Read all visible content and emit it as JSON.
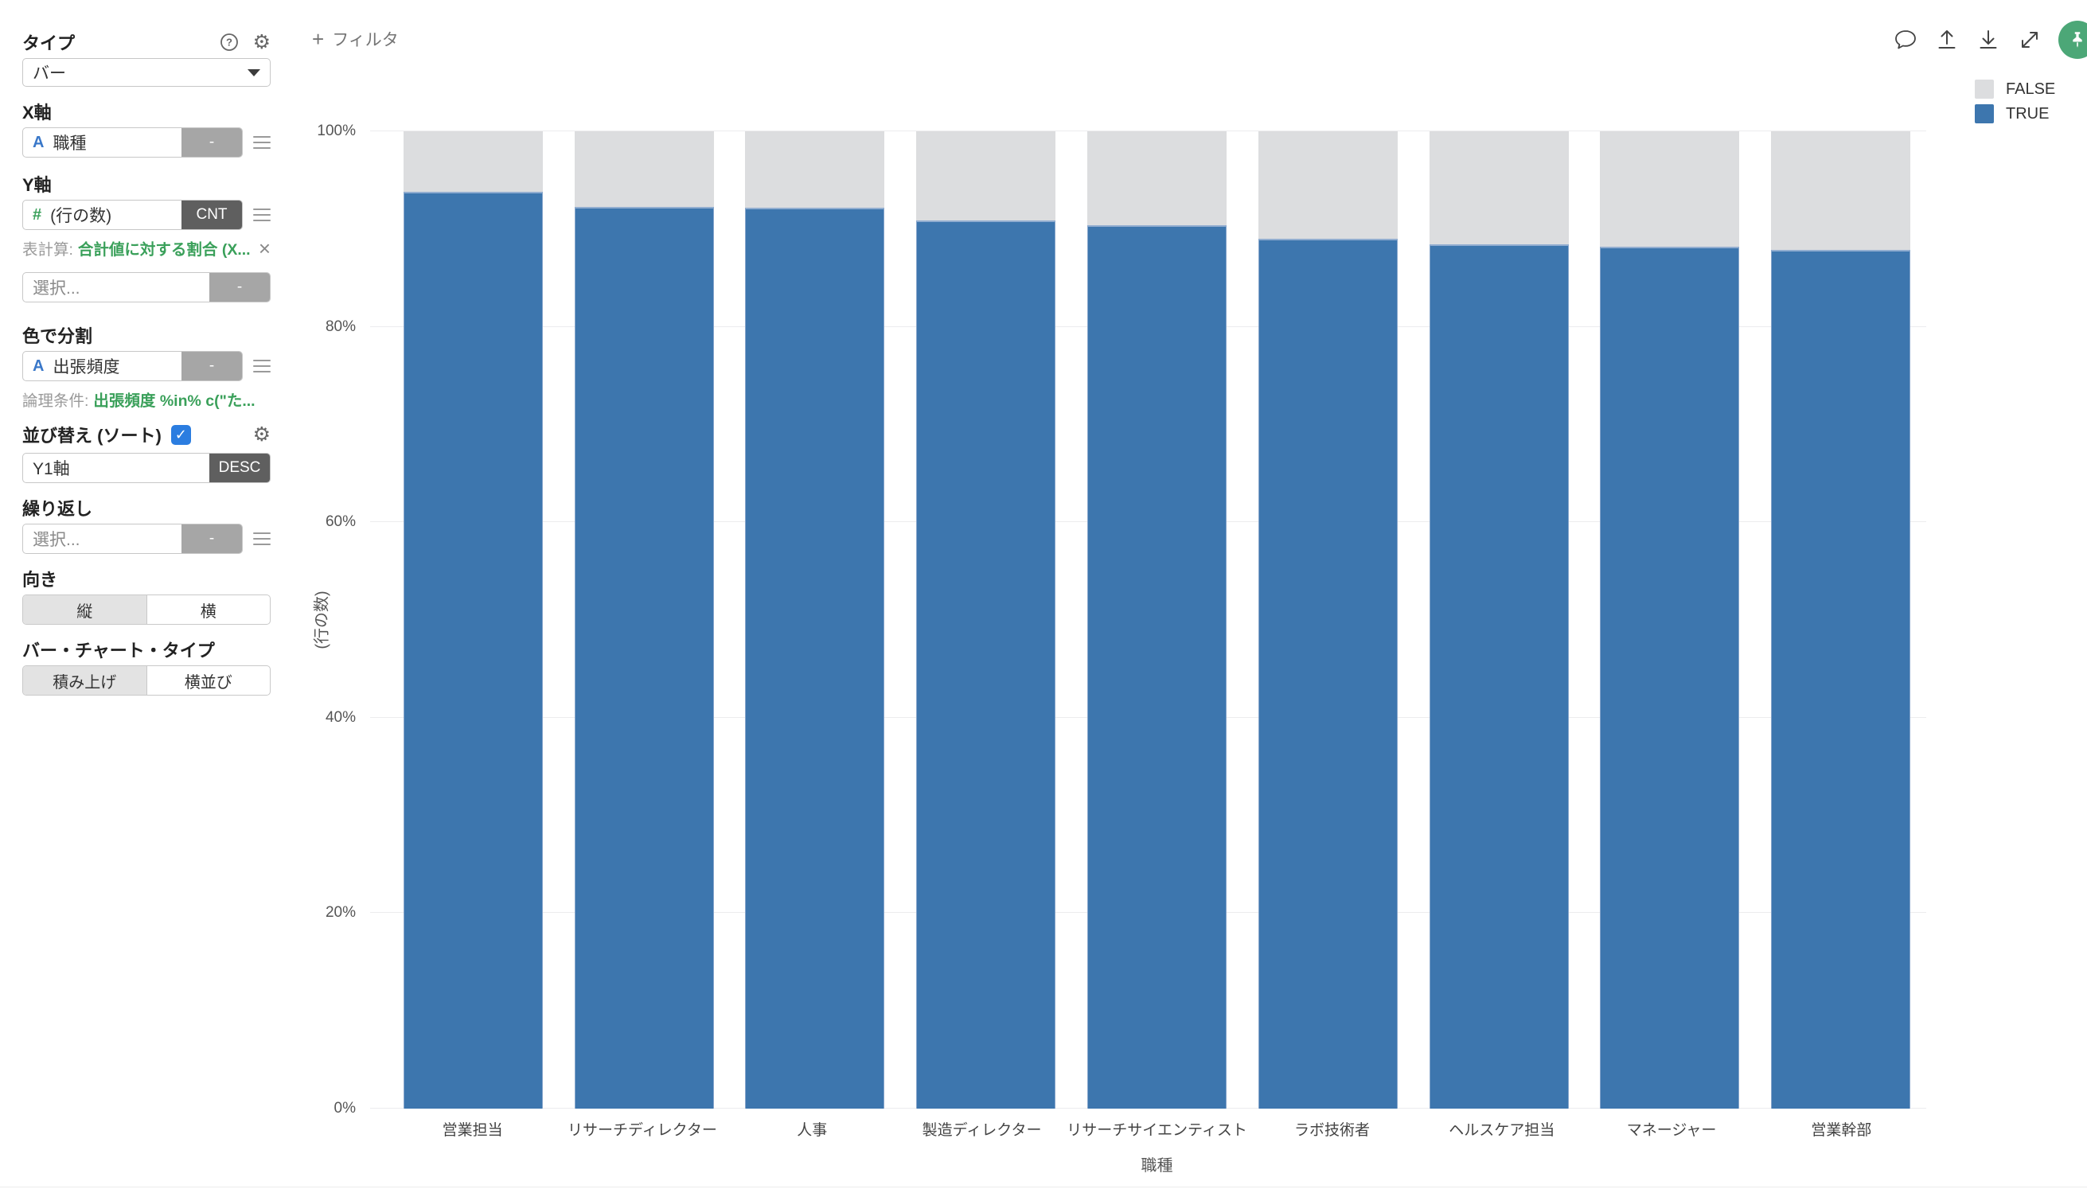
{
  "sidebar": {
    "type_section": {
      "label": "タイプ",
      "value": "バー"
    },
    "x_axis": {
      "label": "X軸",
      "field_type": "A",
      "field": "職種",
      "agg": "-"
    },
    "y_axis": {
      "label": "Y軸",
      "field_type": "#",
      "field": "(行の数)",
      "agg": "CNT",
      "calc_label": "表計算:",
      "calc_value": "合計値に対する割合 (X...",
      "extra_placeholder": "選択...",
      "extra_agg": "-"
    },
    "color_section": {
      "label": "色で分割",
      "field_type": "A",
      "field": "出張頻度",
      "agg": "-",
      "cond_label": "論理条件:",
      "cond_value": "出張頻度 %in% c(\"た..."
    },
    "sort_section": {
      "label": "並び替え (ソート)",
      "checked": true,
      "field": "Y1軸",
      "agg": "DESC"
    },
    "repeat_section": {
      "label": "繰り返し",
      "placeholder": "選択...",
      "agg": "-"
    },
    "orientation": {
      "label": "向き",
      "options": [
        "縦",
        "横"
      ],
      "selected": "縦"
    },
    "bar_chart_type": {
      "label": "バー・チャート・タイプ",
      "options": [
        "積み上げ",
        "横並び"
      ],
      "selected": "積み上げ"
    }
  },
  "toolbar": {
    "filter_label": "フィルタ"
  },
  "icons": {
    "plus": "+",
    "help": "?",
    "gear": "⚙",
    "close": "×",
    "check": "✓"
  },
  "legend": {
    "items": [
      {
        "label": "FALSE",
        "color": "#dcdddf"
      },
      {
        "label": "TRUE",
        "color": "#3d76ae"
      }
    ]
  },
  "chart_data": {
    "type": "bar",
    "stacked": true,
    "normalized": "percent",
    "xlabel": "職種",
    "ylabel": "(行の数)",
    "categories": [
      "営業担当",
      "リサーチディレクター",
      "人事",
      "製造ディレクター",
      "リサーチサイエンティスト",
      "ラボ技術者",
      "ヘルスケア担当",
      "マネージャー",
      "営業幹部"
    ],
    "series": [
      {
        "name": "TRUE",
        "color": "#3d76ae",
        "values": [
          93.8,
          92.3,
          92.2,
          90.9,
          90.4,
          89.0,
          88.4,
          88.2,
          87.9
        ]
      },
      {
        "name": "FALSE",
        "color": "#dcdddf",
        "values": [
          6.2,
          7.7,
          7.8,
          9.1,
          9.6,
          11.0,
          11.6,
          11.8,
          12.1
        ]
      }
    ],
    "y_ticks": [
      "0%",
      "20%",
      "40%",
      "60%",
      "80%",
      "100%"
    ],
    "ylim": [
      0,
      100
    ],
    "grid": true,
    "legend_position": "top-right"
  }
}
